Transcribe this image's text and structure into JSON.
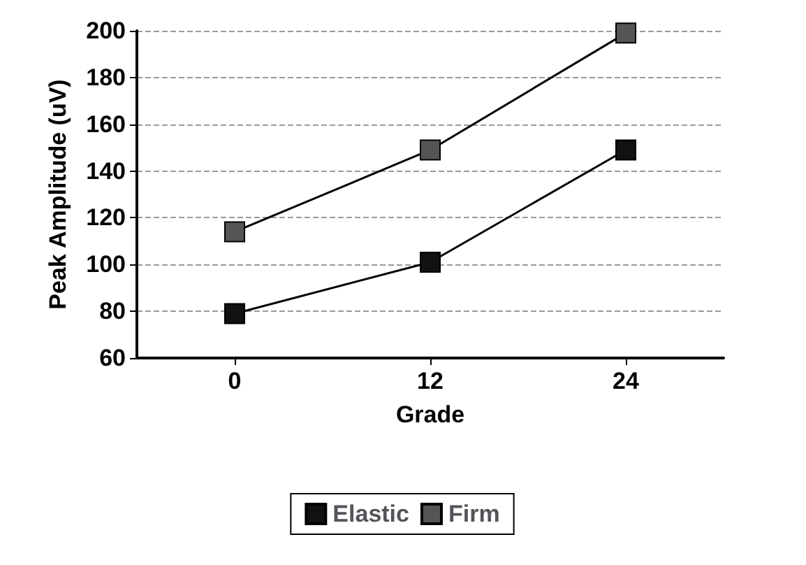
{
  "chart_data": {
    "type": "line",
    "xlabel": "Grade",
    "ylabel": "Peak Amplitude (uV)",
    "categories": [
      "0",
      "12",
      "24"
    ],
    "series": [
      {
        "name": "Elastic",
        "color": "#111111",
        "values": [
          79,
          101,
          149
        ]
      },
      {
        "name": "Firm",
        "color": "#555555",
        "values": [
          114,
          149,
          199
        ]
      }
    ],
    "ylim": [
      60,
      200
    ],
    "yticks": [
      60,
      80,
      100,
      120,
      140,
      160,
      180,
      200
    ],
    "grid": "y",
    "legend": "bottom",
    "marker": "square",
    "line_style": "solid"
  }
}
